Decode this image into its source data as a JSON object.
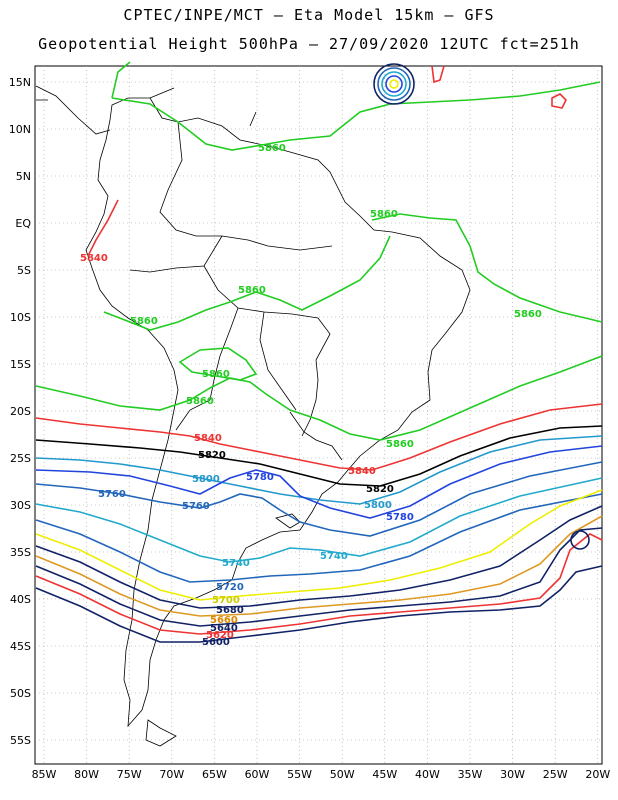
{
  "header": {
    "line1": "CPTEC/INPE/MCT –  Eta Model 15km – GFS",
    "line2": "Geopotential Height 500hPa – 27/09/2020 12UTC fct=251h"
  },
  "latitudes": [
    "15N",
    "10N",
    "5N",
    "EQ",
    "5S",
    "10S",
    "15S",
    "20S",
    "25S",
    "30S",
    "35S",
    "40S",
    "45S",
    "50S",
    "55S"
  ],
  "longitudes": [
    "85W",
    "80W",
    "75W",
    "70W",
    "65W",
    "60W",
    "55W",
    "50W",
    "45W",
    "40W",
    "35W",
    "30W",
    "25W",
    "20W"
  ],
  "contour_labels": [
    {
      "text": "5860",
      "color": "#22cc22"
    },
    {
      "text": "5860",
      "color": "#22cc22"
    },
    {
      "text": "5860",
      "color": "#22cc22"
    },
    {
      "text": "5860",
      "color": "#22cc22"
    },
    {
      "text": "5860",
      "color": "#22cc22"
    },
    {
      "text": "5860",
      "color": "#22cc22"
    },
    {
      "text": "5860",
      "color": "#22cc22"
    },
    {
      "text": "5860",
      "color": "#22cc22"
    },
    {
      "text": "5840",
      "color": "#ee3333"
    },
    {
      "text": "5840",
      "color": "#ee3333"
    },
    {
      "text": "5840",
      "color": "#ee3333"
    },
    {
      "text": "5820",
      "color": "#000000"
    },
    {
      "text": "5820",
      "color": "#000000"
    },
    {
      "text": "5800",
      "color": "#2299cc"
    },
    {
      "text": "5800",
      "color": "#2299cc"
    },
    {
      "text": "5780",
      "color": "#2244dd"
    },
    {
      "text": "5780",
      "color": "#2244dd"
    },
    {
      "text": "5760",
      "color": "#2266bb"
    },
    {
      "text": "5760",
      "color": "#2266bb"
    },
    {
      "text": "5740",
      "color": "#22aacc"
    },
    {
      "text": "5740",
      "color": "#22aacc"
    },
    {
      "text": "5720",
      "color": "#2266bb"
    },
    {
      "text": "5700",
      "color": "#cccc00"
    },
    {
      "text": "5680",
      "color": "#112266"
    },
    {
      "text": "5660",
      "color": "#dd8800"
    },
    {
      "text": "5640",
      "color": "#112266"
    },
    {
      "text": "5620",
      "color": "#ee3333"
    },
    {
      "text": "5600",
      "color": "#112266"
    }
  ],
  "colors": {
    "c5860": "#22cc22",
    "c5840": "#ee3333",
    "c5820": "#000000",
    "c5800": "#2299cc",
    "c5780": "#2244dd",
    "c5760": "#2266bb",
    "c5740": "#22aacc",
    "c5720": "#2266bb",
    "c5700": "#eeee00",
    "c5680": "#112266",
    "c5660": "#dd9922",
    "c5640": "#112266",
    "c5620": "#ee3333",
    "c5600": "#112266",
    "coast": "#000000",
    "grid": "#999999"
  }
}
